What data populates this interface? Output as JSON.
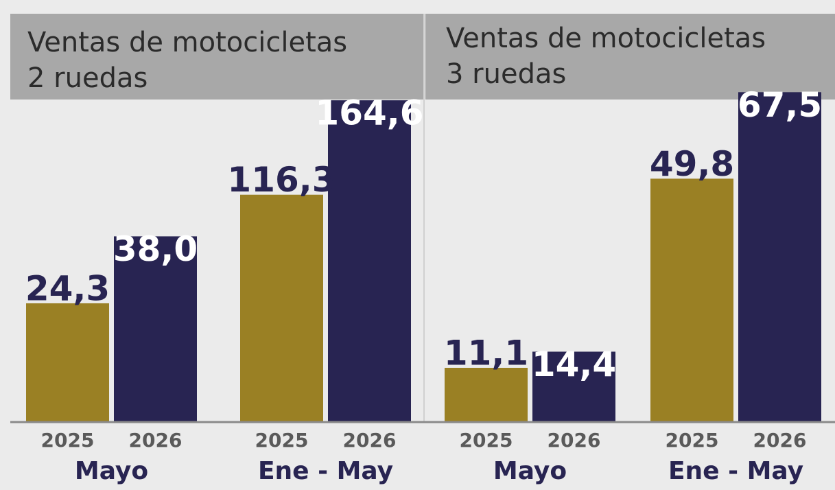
{
  "chart_data": [
    {
      "type": "bar",
      "title": [
        "Ventas de motocicletas",
        "2 ruedas"
      ],
      "categories": [
        "Mayo",
        "Ene - May"
      ],
      "ylims": [
        [
          0,
          66
        ],
        [
          0,
          165
        ]
      ],
      "series": [
        {
          "name": "2025",
          "color": "#9a8024",
          "values": [
            24.3,
            116.3
          ],
          "value_labels": [
            "24,3",
            "116,3"
          ]
        },
        {
          "name": "2026",
          "color": "#282452",
          "values": [
            38.0,
            164.6
          ],
          "value_labels": [
            "38,0",
            "164,6"
          ]
        }
      ]
    },
    {
      "type": "bar",
      "title": [
        "Ventas de motocicletas",
        "3 ruedas"
      ],
      "categories": [
        "Mayo",
        "Ene - May"
      ],
      "ylims": [
        [
          0,
          66
        ],
        [
          0,
          66
        ]
      ],
      "series": [
        {
          "name": "2025",
          "color": "#9a8024",
          "values": [
            11.1,
            49.8
          ],
          "value_labels": [
            "11,1",
            "49,8"
          ]
        },
        {
          "name": "2026",
          "color": "#282452",
          "values": [
            14.4,
            67.5
          ],
          "value_labels": [
            "14,4",
            "67,5"
          ]
        }
      ]
    }
  ]
}
